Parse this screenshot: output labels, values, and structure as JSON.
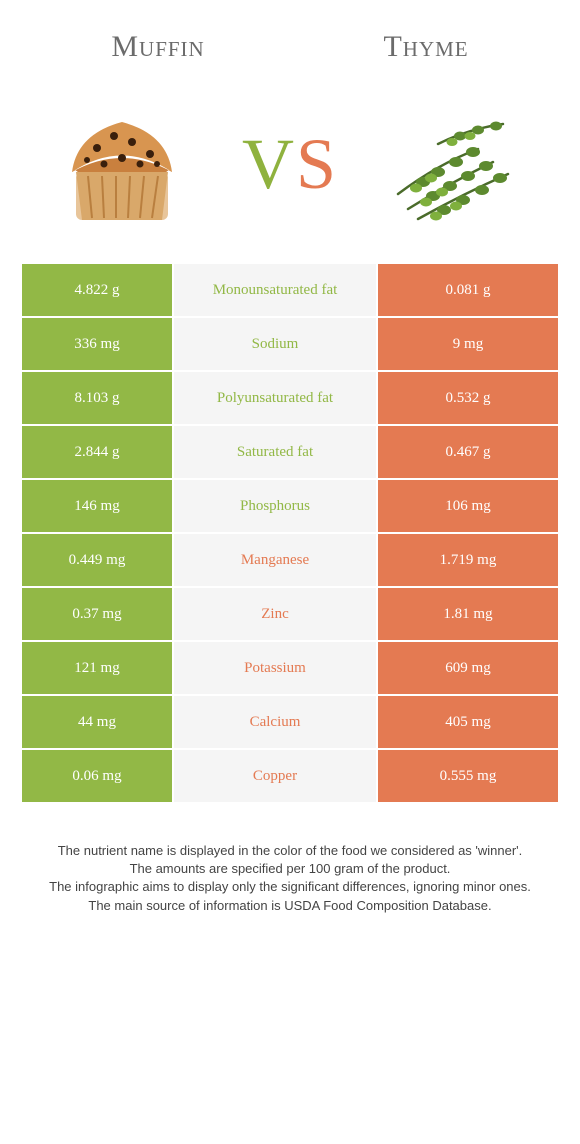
{
  "colors": {
    "green": "#92b846",
    "orange": "#e47a52",
    "mid_bg": "#f5f5f5",
    "text_gray": "#6b6b6b"
  },
  "header": {
    "left": "Muffin",
    "right": "Thyme"
  },
  "vs": {
    "v": "V",
    "s": "S"
  },
  "rows": [
    {
      "left": "4.822 g",
      "label": "Monounsaturated fat",
      "right": "0.081 g",
      "winner": "left"
    },
    {
      "left": "336 mg",
      "label": "Sodium",
      "right": "9 mg",
      "winner": "left"
    },
    {
      "left": "8.103 g",
      "label": "Polyunsaturated fat",
      "right": "0.532 g",
      "winner": "left"
    },
    {
      "left": "2.844 g",
      "label": "Saturated fat",
      "right": "0.467 g",
      "winner": "left"
    },
    {
      "left": "146 mg",
      "label": "Phosphorus",
      "right": "106 mg",
      "winner": "left"
    },
    {
      "left": "0.449 mg",
      "label": "Manganese",
      "right": "1.719 mg",
      "winner": "right"
    },
    {
      "left": "0.37 mg",
      "label": "Zinc",
      "right": "1.81 mg",
      "winner": "right"
    },
    {
      "left": "121 mg",
      "label": "Potassium",
      "right": "609 mg",
      "winner": "right"
    },
    {
      "left": "44 mg",
      "label": "Calcium",
      "right": "405 mg",
      "winner": "right"
    },
    {
      "left": "0.06 mg",
      "label": "Copper",
      "right": "0.555 mg",
      "winner": "right"
    }
  ],
  "footer": {
    "line1": "The nutrient name is displayed in the color of the food we considered as 'winner'.",
    "line2": "The amounts are specified per 100 gram of the product.",
    "line3": "The infographic aims to display only the significant differences, ignoring minor ones.",
    "line4": "The main source of information is USDA Food Composition Database."
  }
}
